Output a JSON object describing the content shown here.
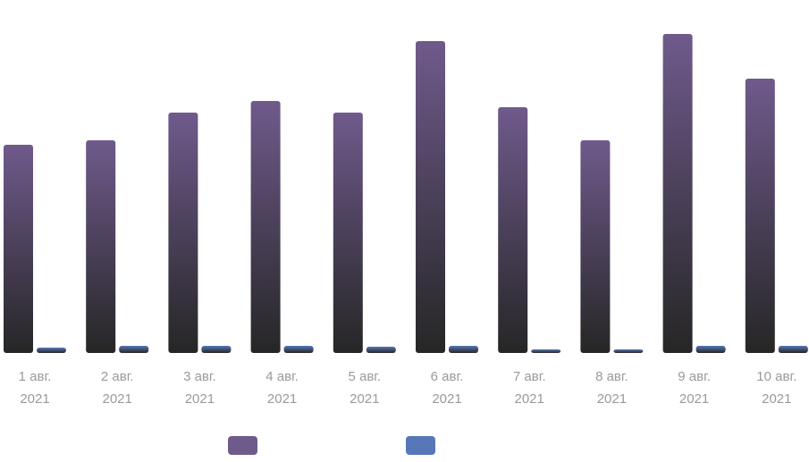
{
  "chart_data": {
    "type": "bar",
    "title": "",
    "xlabel": "",
    "ylabel": "",
    "categories": [
      [
        "1 авг.",
        "2021"
      ],
      [
        "2 авг.",
        "2021"
      ],
      [
        "3 авг.",
        "2021"
      ],
      [
        "4 авг.",
        "2021"
      ],
      [
        "5 авг.",
        "2021"
      ],
      [
        "6 авг.",
        "2021"
      ],
      [
        "7 авг.",
        "2021"
      ],
      [
        "8 авг.",
        "2021"
      ],
      [
        "9 авг.",
        "2021"
      ],
      [
        "10 авг.",
        "2021"
      ]
    ],
    "series": [
      {
        "color": "#6f5a8c",
        "values": [
          233,
          238,
          269,
          282,
          269,
          349,
          275,
          238,
          357,
          307
        ]
      },
      {
        "color": "#5677b8",
        "values": [
          6,
          8,
          8,
          8,
          7,
          8,
          4,
          4,
          8,
          8
        ]
      }
    ],
    "ylim": [
      0,
      370
    ],
    "grid": false,
    "legend": "bottom"
  }
}
